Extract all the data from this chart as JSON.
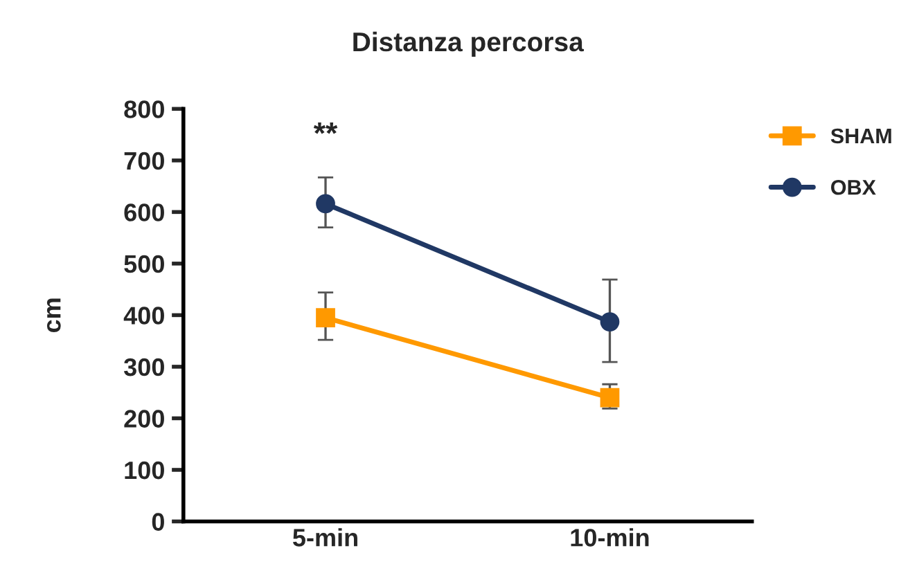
{
  "chart_data": {
    "type": "line",
    "title": "Distanza percorsa",
    "ylabel": "cm",
    "categories": [
      "5-min",
      "10-min"
    ],
    "series": [
      {
        "name": "SHAM",
        "color": "#ff9900",
        "marker": "square",
        "values": [
          395,
          240
        ],
        "errors": [
          [
            352,
            444
          ],
          [
            219,
            266
          ]
        ]
      },
      {
        "name": "OBX",
        "color": "#203864",
        "marker": "circle",
        "values": [
          616,
          387
        ],
        "errors": [
          [
            570,
            667
          ],
          [
            309,
            469
          ]
        ]
      }
    ],
    "ylim": [
      0,
      800
    ],
    "yticks": [
      0,
      100,
      200,
      300,
      400,
      500,
      600,
      700,
      800
    ],
    "annotations": [
      "**"
    ],
    "grid": false,
    "legend": "top right"
  }
}
